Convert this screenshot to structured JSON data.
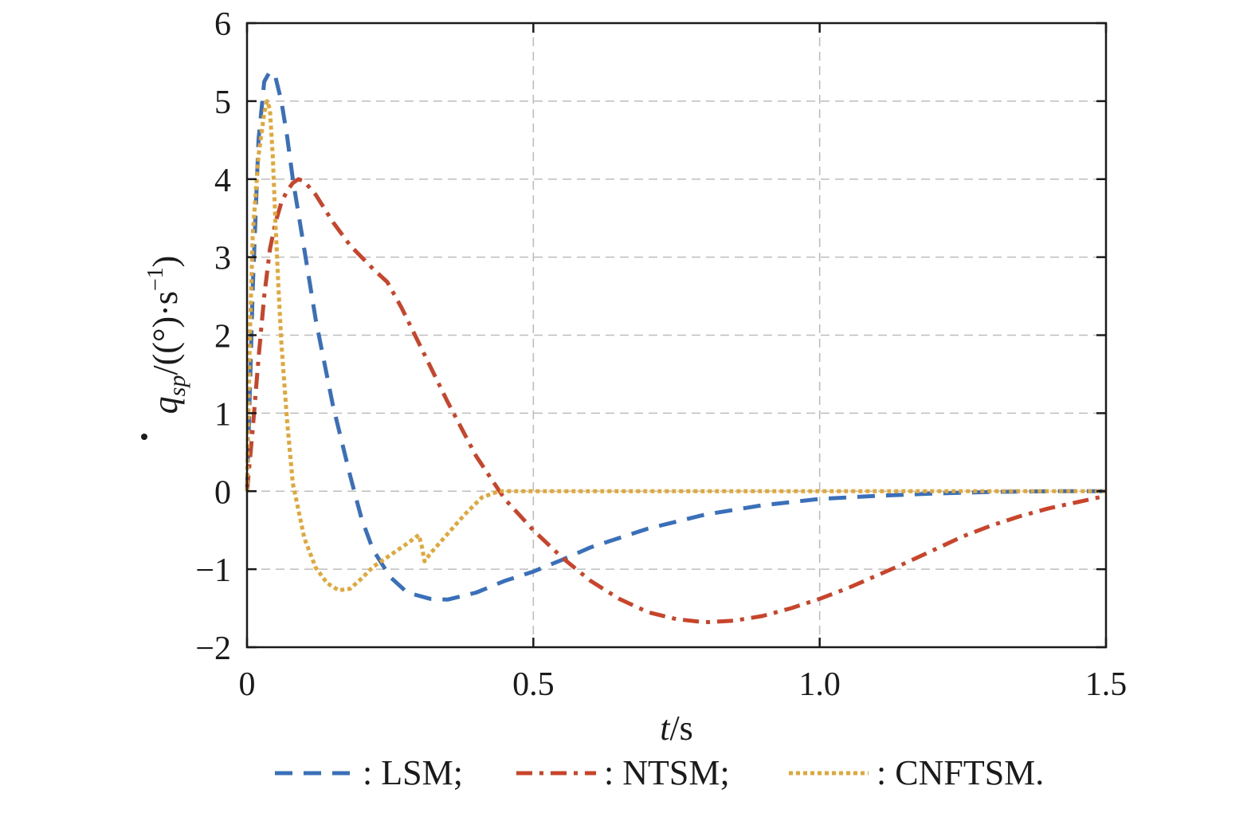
{
  "chart_data": {
    "type": "line",
    "xlabel": {
      "italic": "t",
      "rest": "/s"
    },
    "ylabel": {
      "var": "q",
      "sub": "sp",
      "unit_prefix": "/((°)·s",
      "sup": "−1",
      "unit_suffix": ")"
    },
    "xlim": [
      0,
      1.5
    ],
    "ylim": [
      -2,
      6
    ],
    "x_ticks": [
      {
        "value": 0,
        "label": "0"
      },
      {
        "value": 0.5,
        "label": "0.5"
      },
      {
        "value": 1.0,
        "label": "1.0"
      },
      {
        "value": 1.5,
        "label": "1.5"
      }
    ],
    "y_ticks": [
      {
        "value": -2,
        "label": "−2"
      },
      {
        "value": -1,
        "label": "−1"
      },
      {
        "value": 0,
        "label": "0"
      },
      {
        "value": 1,
        "label": "1"
      },
      {
        "value": 2,
        "label": "2"
      },
      {
        "value": 3,
        "label": "3"
      },
      {
        "value": 4,
        "label": "4"
      },
      {
        "value": 5,
        "label": "5"
      },
      {
        "value": 6,
        "label": "6"
      }
    ],
    "grid": true,
    "legend_position": "bottom",
    "series": [
      {
        "name": "LSM",
        "legend_label": ": LSM;",
        "color": "#3a6fba",
        "dash": "dashed",
        "points": [
          [
            0,
            0
          ],
          [
            0.01,
            2.6
          ],
          [
            0.02,
            4.5
          ],
          [
            0.03,
            5.25
          ],
          [
            0.04,
            5.38
          ],
          [
            0.05,
            5.3
          ],
          [
            0.06,
            5.0
          ],
          [
            0.07,
            4.55
          ],
          [
            0.08,
            4.0
          ],
          [
            0.1,
            3.1
          ],
          [
            0.12,
            2.2
          ],
          [
            0.15,
            1.1
          ],
          [
            0.18,
            0.2
          ],
          [
            0.2,
            -0.35
          ],
          [
            0.22,
            -0.75
          ],
          [
            0.25,
            -1.1
          ],
          [
            0.28,
            -1.3
          ],
          [
            0.32,
            -1.38
          ],
          [
            0.35,
            -1.39
          ],
          [
            0.4,
            -1.3
          ],
          [
            0.45,
            -1.15
          ],
          [
            0.5,
            -1.03
          ],
          [
            0.55,
            -0.88
          ],
          [
            0.6,
            -0.72
          ],
          [
            0.7,
            -0.48
          ],
          [
            0.8,
            -0.3
          ],
          [
            0.9,
            -0.18
          ],
          [
            1.0,
            -0.1
          ],
          [
            1.1,
            -0.06
          ],
          [
            1.2,
            -0.03
          ],
          [
            1.3,
            -0.01
          ],
          [
            1.4,
            0
          ],
          [
            1.5,
            0
          ]
        ]
      },
      {
        "name": "NTSM",
        "legend_label": ": NTSM;",
        "color": "#c8442a",
        "dash": "dashdot",
        "points": [
          [
            0,
            0
          ],
          [
            0.01,
            0.8
          ],
          [
            0.02,
            1.7
          ],
          [
            0.03,
            2.5
          ],
          [
            0.04,
            3.1
          ],
          [
            0.05,
            3.45
          ],
          [
            0.06,
            3.7
          ],
          [
            0.07,
            3.85
          ],
          [
            0.08,
            3.95
          ],
          [
            0.09,
            4.0
          ],
          [
            0.1,
            3.97
          ],
          [
            0.12,
            3.8
          ],
          [
            0.15,
            3.45
          ],
          [
            0.18,
            3.15
          ],
          [
            0.22,
            2.85
          ],
          [
            0.245,
            2.68
          ],
          [
            0.27,
            2.35
          ],
          [
            0.3,
            1.9
          ],
          [
            0.35,
            1.15
          ],
          [
            0.4,
            0.45
          ],
          [
            0.45,
            -0.1
          ],
          [
            0.5,
            -0.5
          ],
          [
            0.55,
            -0.85
          ],
          [
            0.6,
            -1.15
          ],
          [
            0.65,
            -1.38
          ],
          [
            0.7,
            -1.55
          ],
          [
            0.75,
            -1.64
          ],
          [
            0.8,
            -1.68
          ],
          [
            0.85,
            -1.66
          ],
          [
            0.9,
            -1.6
          ],
          [
            0.95,
            -1.5
          ],
          [
            1.0,
            -1.38
          ],
          [
            1.05,
            -1.24
          ],
          [
            1.1,
            -1.08
          ],
          [
            1.15,
            -0.92
          ],
          [
            1.2,
            -0.75
          ],
          [
            1.25,
            -0.58
          ],
          [
            1.3,
            -0.44
          ],
          [
            1.35,
            -0.32
          ],
          [
            1.4,
            -0.22
          ],
          [
            1.45,
            -0.14
          ],
          [
            1.5,
            -0.06
          ]
        ]
      },
      {
        "name": "CNFTSM",
        "legend_label": ": CNFTSM.",
        "color": "#e0a73a",
        "dash": "dotted",
        "points": [
          [
            0,
            0
          ],
          [
            0.005,
            2.0
          ],
          [
            0.01,
            3.3
          ],
          [
            0.02,
            4.3
          ],
          [
            0.03,
            4.85
          ],
          [
            0.035,
            5.0
          ],
          [
            0.04,
            4.9
          ],
          [
            0.045,
            4.3
          ],
          [
            0.05,
            3.4
          ],
          [
            0.055,
            2.6
          ],
          [
            0.06,
            1.9
          ],
          [
            0.07,
            0.9
          ],
          [
            0.08,
            0.1
          ],
          [
            0.1,
            -0.6
          ],
          [
            0.12,
            -0.98
          ],
          [
            0.14,
            -1.18
          ],
          [
            0.16,
            -1.27
          ],
          [
            0.18,
            -1.25
          ],
          [
            0.2,
            -1.12
          ],
          [
            0.22,
            -0.97
          ],
          [
            0.25,
            -0.82
          ],
          [
            0.28,
            -0.67
          ],
          [
            0.3,
            -0.56
          ],
          [
            0.305,
            -0.7
          ],
          [
            0.31,
            -0.9
          ],
          [
            0.32,
            -0.8
          ],
          [
            0.35,
            -0.55
          ],
          [
            0.38,
            -0.3
          ],
          [
            0.41,
            -0.08
          ],
          [
            0.44,
            0
          ],
          [
            0.5,
            0
          ],
          [
            1.0,
            0
          ],
          [
            1.5,
            0
          ]
        ]
      }
    ]
  }
}
